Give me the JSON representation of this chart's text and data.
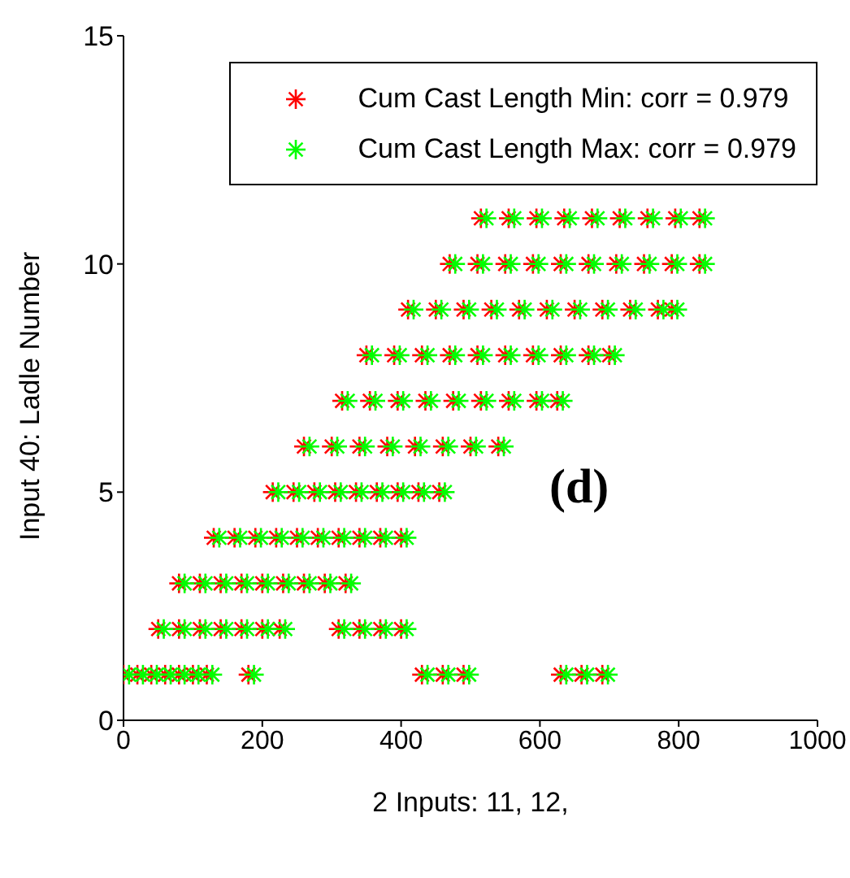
{
  "chart_data": {
    "type": "scatter",
    "xlabel": "2 Inputs: 11, 12,",
    "ylabel": "Input 40: Ladle Number",
    "xlim": [
      0,
      1000
    ],
    "xticks": [
      0,
      200,
      400,
      600,
      800,
      1000
    ],
    "ylim": [
      0,
      15
    ],
    "yticks": [
      0,
      5,
      10,
      15
    ],
    "marker": "cross",
    "legend": "top right",
    "grid": false,
    "annotations": [
      "(d)"
    ],
    "series": [
      {
        "name": "Cum Cast Length Min: corr = 0.979",
        "color": "#ff0000",
        "x": [
          0,
          20,
          40,
          60,
          80,
          100,
          120,
          180,
          430,
          460,
          490,
          630,
          660,
          690,
          50,
          80,
          110,
          140,
          170,
          200,
          225,
          310,
          340,
          370,
          400,
          80,
          110,
          140,
          170,
          200,
          230,
          260,
          290,
          320,
          130,
          160,
          190,
          220,
          250,
          280,
          310,
          340,
          370,
          400,
          215,
          245,
          275,
          305,
          335,
          365,
          395,
          425,
          455,
          260,
          300,
          340,
          380,
          420,
          460,
          500,
          540,
          315,
          355,
          395,
          435,
          475,
          515,
          555,
          595,
          625,
          350,
          390,
          430,
          470,
          510,
          550,
          590,
          630,
          670,
          700,
          410,
          450,
          490,
          530,
          570,
          610,
          650,
          690,
          730,
          770,
          790,
          470,
          510,
          550,
          590,
          630,
          670,
          710,
          750,
          790,
          830,
          515,
          555,
          595,
          635,
          675,
          715,
          755,
          795,
          830
        ],
        "values": [
          1,
          1,
          1,
          1,
          1,
          1,
          1,
          1,
          1,
          1,
          1,
          1,
          1,
          1,
          2,
          2,
          2,
          2,
          2,
          2,
          2,
          2,
          2,
          2,
          2,
          3,
          3,
          3,
          3,
          3,
          3,
          3,
          3,
          3,
          4,
          4,
          4,
          4,
          4,
          4,
          4,
          4,
          4,
          4,
          5,
          5,
          5,
          5,
          5,
          5,
          5,
          5,
          5,
          6,
          6,
          6,
          6,
          6,
          6,
          6,
          6,
          7,
          7,
          7,
          7,
          7,
          7,
          7,
          7,
          7,
          8,
          8,
          8,
          8,
          8,
          8,
          8,
          8,
          8,
          8,
          9,
          9,
          9,
          9,
          9,
          9,
          9,
          9,
          9,
          9,
          9,
          10,
          10,
          10,
          10,
          10,
          10,
          10,
          10,
          10,
          10,
          11,
          11,
          11,
          11,
          11,
          11,
          11,
          11,
          11
        ]
      },
      {
        "name": "Cum Cast Length Max: corr = 0.979",
        "color": "#00ff00",
        "x": [
          8,
          28,
          48,
          68,
          88,
          108,
          128,
          188,
          438,
          468,
          498,
          638,
          668,
          698,
          58,
          88,
          118,
          148,
          178,
          208,
          233,
          318,
          348,
          378,
          408,
          88,
          118,
          148,
          178,
          208,
          238,
          268,
          298,
          328,
          138,
          168,
          198,
          228,
          258,
          288,
          318,
          348,
          378,
          408,
          223,
          253,
          283,
          313,
          343,
          373,
          403,
          433,
          463,
          268,
          308,
          348,
          388,
          428,
          468,
          508,
          548,
          323,
          363,
          403,
          443,
          483,
          523,
          563,
          603,
          633,
          358,
          398,
          438,
          478,
          518,
          558,
          598,
          638,
          678,
          708,
          418,
          458,
          498,
          538,
          578,
          618,
          658,
          698,
          738,
          778,
          798,
          478,
          518,
          558,
          598,
          638,
          678,
          718,
          758,
          798,
          838,
          523,
          563,
          603,
          643,
          683,
          723,
          763,
          803,
          838
        ],
        "values": [
          1,
          1,
          1,
          1,
          1,
          1,
          1,
          1,
          1,
          1,
          1,
          1,
          1,
          1,
          2,
          2,
          2,
          2,
          2,
          2,
          2,
          2,
          2,
          2,
          2,
          3,
          3,
          3,
          3,
          3,
          3,
          3,
          3,
          3,
          4,
          4,
          4,
          4,
          4,
          4,
          4,
          4,
          4,
          4,
          5,
          5,
          5,
          5,
          5,
          5,
          5,
          5,
          5,
          6,
          6,
          6,
          6,
          6,
          6,
          6,
          6,
          7,
          7,
          7,
          7,
          7,
          7,
          7,
          7,
          7,
          8,
          8,
          8,
          8,
          8,
          8,
          8,
          8,
          8,
          8,
          9,
          9,
          9,
          9,
          9,
          9,
          9,
          9,
          9,
          9,
          9,
          10,
          10,
          10,
          10,
          10,
          10,
          10,
          10,
          10,
          10,
          11,
          11,
          11,
          11,
          11,
          11,
          11,
          11,
          11
        ]
      }
    ]
  }
}
